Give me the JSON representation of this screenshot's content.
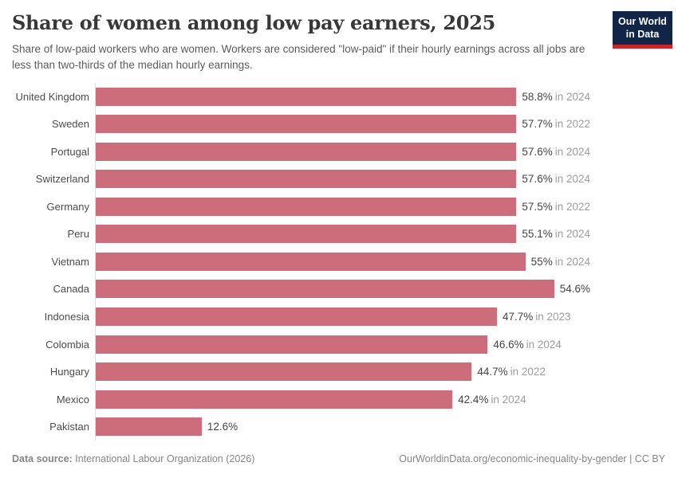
{
  "header": {
    "title": "Share of women among low pay earners, 2025",
    "subtitle": "Share of low-paid workers who are women. Workers are considered \"low-paid\" if their hourly earnings across all jobs are less than two-thirds of the median hourly earnings.",
    "logo": {
      "line1": "Our World",
      "line2": "in Data"
    }
  },
  "chart_data": {
    "type": "bar",
    "orientation": "horizontal",
    "title": "Share of women among low pay earners, 2025",
    "unit": "%",
    "xlim": [
      0,
      60
    ],
    "grid": false,
    "legend": "none",
    "bar_color": "#cd6c7b",
    "categories": [
      "United Kingdom",
      "Sweden",
      "Portugal",
      "Switzerland",
      "Germany",
      "Peru",
      "Vietnam",
      "Canada",
      "Indonesia",
      "Colombia",
      "Hungary",
      "Mexico",
      "Pakistan"
    ],
    "values": [
      58.8,
      57.7,
      57.6,
      57.6,
      57.5,
      55.1,
      55,
      54.6,
      47.7,
      46.6,
      44.7,
      42.4,
      12.6
    ],
    "value_labels": [
      "58.8%",
      "57.7%",
      "57.6%",
      "57.6%",
      "57.5%",
      "55.1%",
      "55%",
      "54.6%",
      "47.7%",
      "46.6%",
      "44.7%",
      "42.4%",
      "12.6%"
    ],
    "year_labels": [
      "in 2024",
      "in 2022",
      "in 2024",
      "in 2024",
      "in 2022",
      "in 2024",
      "in 2024",
      "",
      "in 2023",
      "in 2024",
      "in 2022",
      "in 2024",
      ""
    ]
  },
  "footer": {
    "datasource_label": "Data source:",
    "datasource": "International Labour Organization (2026)",
    "url": "OurWorldinData.org/economic-inequality-by-gender",
    "license": " | CC BY"
  },
  "colors": {
    "bar": "#cd6c7b",
    "logo_background": "#102548",
    "logo_underline": "#c7252c",
    "title_text": "#383838",
    "subtitle_text": "#5b5b5b",
    "year_text": "#9d9d9d",
    "axis_line": "#dcdcdc"
  }
}
